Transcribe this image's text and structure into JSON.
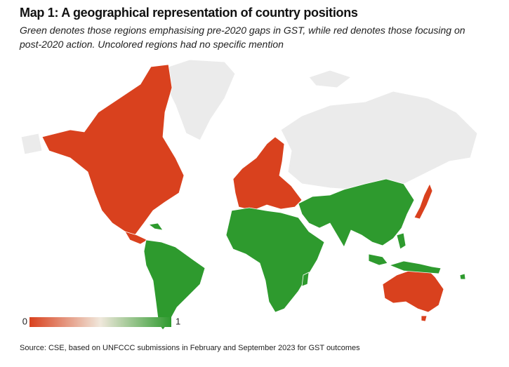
{
  "header": {
    "title": "Map 1: A geographical representation of country positions",
    "subtitle": "Green denotes those regions emphasising pre-2020 gaps in GST, while red denotes those focusing on post-2020 action. Uncolored regions had no specific mention"
  },
  "legend": {
    "min": 0,
    "max": 1
  },
  "footer": {
    "source": "Source: CSE, based on UNFCCC submissions in February and September 2023 for GST outcomes"
  }
}
